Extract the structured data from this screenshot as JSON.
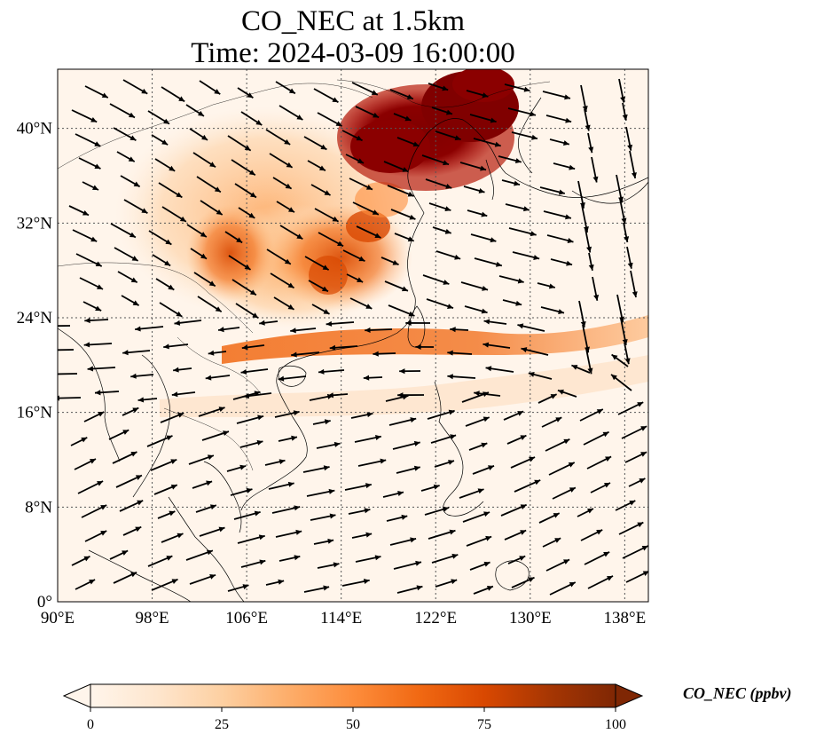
{
  "title": {
    "line1": "CO_NEC at 1.5km",
    "line2": "Time: 2024-03-09 16:00:00"
  },
  "map": {
    "extent": {
      "lon_min": 90,
      "lon_max": 140,
      "lat_min": 0,
      "lat_max": 45
    },
    "gridlines": "dotted",
    "lon_ticks": [
      {
        "value": 90,
        "label": "90°E"
      },
      {
        "value": 98,
        "label": "98°E"
      },
      {
        "value": 106,
        "label": "106°E"
      },
      {
        "value": 114,
        "label": "114°E"
      },
      {
        "value": 122,
        "label": "122°E"
      },
      {
        "value": 130,
        "label": "130°E"
      },
      {
        "value": 138,
        "label": "138°E"
      }
    ],
    "lat_ticks": [
      {
        "value": 0,
        "label": "0°"
      },
      {
        "value": 8,
        "label": "8°N"
      },
      {
        "value": 16,
        "label": "16°N"
      },
      {
        "value": 24,
        "label": "24°N"
      },
      {
        "value": 32,
        "label": "32°N"
      },
      {
        "value": 40,
        "label": "40°N"
      }
    ],
    "overlay": "wind vectors"
  },
  "colorbar": {
    "title": "CO_NEC (ppbv)",
    "colormap": [
      "#fff5eb",
      "#fee6ce",
      "#fdd0a2",
      "#fdae6b",
      "#fd8d3c",
      "#f16913",
      "#d94801",
      "#a63603",
      "#7f2704"
    ],
    "range": [
      0,
      100
    ],
    "ticks": [
      {
        "value": 0,
        "label": "0"
      },
      {
        "value": 25,
        "label": "25"
      },
      {
        "value": 50,
        "label": "50"
      },
      {
        "value": 75,
        "label": "75"
      },
      {
        "value": 100,
        "label": "100"
      }
    ],
    "extend": "both"
  }
}
